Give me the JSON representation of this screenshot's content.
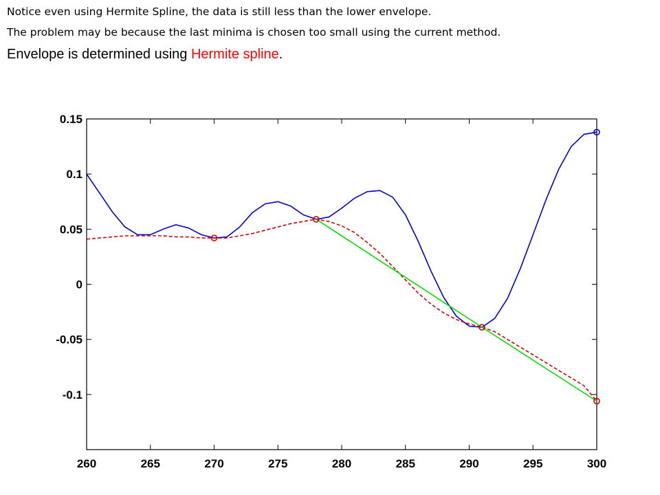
{
  "slide": {
    "note_line_1": "Notice even using Hermite Spline, the data is still less than the lower envelope.",
    "note_line_2": "The problem may be because the last minima is chosen too small using the current method.",
    "headline_prefix": "Envelope is determined using ",
    "headline_accent": "Hermite spline",
    "headline_suffix": ".",
    "accent_color": "#ff0000"
  },
  "chart_data": {
    "type": "line",
    "title": "",
    "xlabel": "",
    "ylabel": "",
    "xlim": [
      260,
      300
    ],
    "ylim": [
      -0.15,
      0.15
    ],
    "grid": false,
    "x_ticks": [
      260,
      265,
      270,
      275,
      280,
      285,
      290,
      295,
      300
    ],
    "x_tick_labels": [
      "260",
      "265",
      "270",
      "275",
      "280",
      "285",
      "290",
      "295",
      "300"
    ],
    "y_ticks": [
      0.15,
      0.1,
      0.05,
      0,
      -0.05,
      -0.1
    ],
    "y_tick_labels": [
      "0.15",
      "0.1",
      "0.05",
      "0",
      "-0.05",
      "-0.1"
    ],
    "series": [
      {
        "key": "signal",
        "color": "#0000cc",
        "style": "solid",
        "points": [
          [
            260,
            0.1
          ],
          [
            261,
            0.083
          ],
          [
            262,
            0.066
          ],
          [
            263,
            0.052
          ],
          [
            264,
            0.045
          ],
          [
            265,
            0.045
          ],
          [
            266,
            0.05
          ],
          [
            267,
            0.054
          ],
          [
            268,
            0.051
          ],
          [
            269,
            0.045
          ],
          [
            270,
            0.042
          ],
          [
            271,
            0.043
          ],
          [
            272,
            0.052
          ],
          [
            273,
            0.065
          ],
          [
            274,
            0.073
          ],
          [
            275,
            0.075
          ],
          [
            276,
            0.071
          ],
          [
            277,
            0.063
          ],
          [
            278,
            0.059
          ],
          [
            279,
            0.061
          ],
          [
            280,
            0.069
          ],
          [
            281,
            0.078
          ],
          [
            282,
            0.084
          ],
          [
            283,
            0.085
          ],
          [
            284,
            0.079
          ],
          [
            285,
            0.063
          ],
          [
            286,
            0.039
          ],
          [
            287,
            0.012
          ],
          [
            288,
            -0.012
          ],
          [
            289,
            -0.029
          ],
          [
            290,
            -0.038
          ],
          [
            291,
            -0.039
          ],
          [
            292,
            -0.031
          ],
          [
            293,
            -0.013
          ],
          [
            294,
            0.014
          ],
          [
            295,
            0.045
          ],
          [
            296,
            0.076
          ],
          [
            297,
            0.104
          ],
          [
            298,
            0.125
          ],
          [
            299,
            0.136
          ],
          [
            300,
            0.138
          ]
        ]
      },
      {
        "key": "envelope-hermite",
        "color": "#cc0000",
        "style": "dashed",
        "points": [
          [
            260,
            0.041
          ],
          [
            261,
            0.042
          ],
          [
            262,
            0.043
          ],
          [
            263,
            0.044
          ],
          [
            264,
            0.044
          ],
          [
            265,
            0.044
          ],
          [
            266,
            0.044
          ],
          [
            267,
            0.043
          ],
          [
            268,
            0.043
          ],
          [
            269,
            0.042
          ],
          [
            270,
            0.042
          ],
          [
            271,
            0.042
          ],
          [
            272,
            0.044
          ],
          [
            273,
            0.046
          ],
          [
            274,
            0.049
          ],
          [
            275,
            0.052
          ],
          [
            276,
            0.055
          ],
          [
            277,
            0.057
          ],
          [
            278,
            0.059
          ],
          [
            279,
            0.057
          ],
          [
            280,
            0.053
          ],
          [
            281,
            0.047
          ],
          [
            282,
            0.038
          ],
          [
            283,
            0.028
          ],
          [
            284,
            0.016
          ],
          [
            285,
            0.004
          ],
          [
            286,
            -0.008
          ],
          [
            287,
            -0.018
          ],
          [
            288,
            -0.026
          ],
          [
            289,
            -0.032
          ],
          [
            290,
            -0.036
          ],
          [
            291,
            -0.039
          ],
          [
            292,
            -0.043
          ],
          [
            293,
            -0.05
          ],
          [
            294,
            -0.057
          ],
          [
            295,
            -0.064
          ],
          [
            296,
            -0.071
          ],
          [
            297,
            -0.078
          ],
          [
            298,
            -0.085
          ],
          [
            299,
            -0.092
          ],
          [
            300,
            -0.106
          ]
        ]
      },
      {
        "key": "envelope-linear",
        "color": "#00dd00",
        "style": "solid",
        "points": [
          [
            278,
            0.059
          ],
          [
            291,
            -0.039
          ],
          [
            300,
            -0.106
          ]
        ]
      }
    ],
    "markers": [
      {
        "key": "min-270",
        "x": 270,
        "y": 0.042,
        "color": "#cc0000"
      },
      {
        "key": "min-278",
        "x": 278,
        "y": 0.059,
        "color": "#cc0000"
      },
      {
        "key": "min-291",
        "x": 291,
        "y": -0.039,
        "color": "#cc0000"
      },
      {
        "key": "min-300",
        "x": 300,
        "y": -0.106,
        "color": "#cc0000"
      },
      {
        "key": "max-300",
        "x": 300,
        "y": 0.138,
        "color": "#0000cc"
      }
    ]
  }
}
